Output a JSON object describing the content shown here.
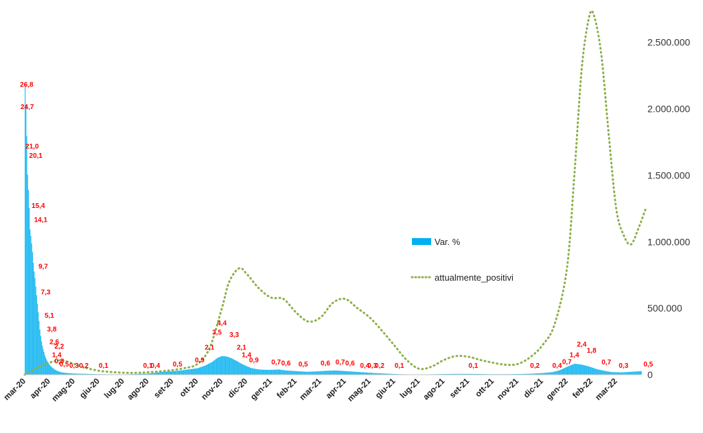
{
  "colors": {
    "bars": "#00b0f0",
    "line": "#8db04a",
    "labels": "#ff0000"
  },
  "chart_data": {
    "type": "bar",
    "categories": [
      "mar-20",
      "apr-20",
      "mag-20",
      "giu-20",
      "lug-20",
      "ago-20",
      "set-20",
      "ott-20",
      "nov-20",
      "dic-20",
      "gen-21",
      "feb-21",
      "mar-21",
      "apr-21",
      "mag-21",
      "giu-21",
      "lug-21",
      "ago-21",
      "set-21",
      "ott-21",
      "nov-21",
      "dic-21",
      "gen-22",
      "feb-22",
      "mar-22"
    ],
    "xlabel": "",
    "ylabel": "",
    "grid": false,
    "legend_placement": "center-right",
    "secondary_axis": {
      "ylim": [
        0,
        2700000
      ],
      "ticks": [
        "0",
        "500.000",
        "1.000.000",
        "1.500.000",
        "2.000.000",
        "2.500.000"
      ],
      "tick_values": [
        0,
        500000,
        1000000,
        1500000,
        2000000,
        2500000
      ]
    },
    "series": [
      {
        "name": "Var. %",
        "type": "bar",
        "axis": "primary",
        "points": [
          [
            0,
            90
          ],
          [
            0.05,
            80
          ],
          [
            0.1,
            62
          ],
          [
            0.15,
            55
          ],
          [
            0.2,
            45
          ],
          [
            0.25,
            42
          ],
          [
            0.3,
            38
          ],
          [
            0.35,
            33
          ],
          [
            0.4,
            30
          ],
          [
            0.45,
            26
          ],
          [
            0.5,
            22
          ],
          [
            0.55,
            18
          ],
          [
            0.6,
            14
          ],
          [
            0.65,
            11
          ],
          [
            0.7,
            9
          ],
          [
            0.75,
            7.5
          ],
          [
            0.8,
            6
          ],
          [
            0.85,
            5
          ],
          [
            0.9,
            4.2
          ],
          [
            0.95,
            3.6
          ],
          [
            1.0,
            3.0
          ],
          [
            1.1,
            2.2
          ],
          [
            1.2,
            1.6
          ],
          [
            1.3,
            1.2
          ],
          [
            1.4,
            0.9
          ],
          [
            1.5,
            0.7
          ],
          [
            1.7,
            0.5
          ],
          [
            2.0,
            0.35
          ],
          [
            2.5,
            0.25
          ],
          [
            3.0,
            0.15
          ],
          [
            3.5,
            0.12
          ],
          [
            4.0,
            0.1
          ],
          [
            4.5,
            0.2
          ],
          [
            5.0,
            0.35
          ],
          [
            5.3,
            0.6
          ],
          [
            5.6,
            0.9
          ],
          [
            6.0,
            1.1
          ],
          [
            6.3,
            1.3
          ],
          [
            6.6,
            1.6
          ],
          [
            7.0,
            2.0
          ],
          [
            7.3,
            2.8
          ],
          [
            7.6,
            4.0
          ],
          [
            7.8,
            5.2
          ],
          [
            8.0,
            5.8
          ],
          [
            8.2,
            5.6
          ],
          [
            8.4,
            5.0
          ],
          [
            8.6,
            4.2
          ],
          [
            8.8,
            3.3
          ],
          [
            9.0,
            2.6
          ],
          [
            9.2,
            2.0
          ],
          [
            9.5,
            1.6
          ],
          [
            9.8,
            1.5
          ],
          [
            10.0,
            1.5
          ],
          [
            10.3,
            1.6
          ],
          [
            10.6,
            1.3
          ],
          [
            11.0,
            1.1
          ],
          [
            11.4,
            0.9
          ],
          [
            11.8,
            1.0
          ],
          [
            12.2,
            1.2
          ],
          [
            12.6,
            1.3
          ],
          [
            13.0,
            1.1
          ],
          [
            13.4,
            0.9
          ],
          [
            13.8,
            0.7
          ],
          [
            14.2,
            0.5
          ],
          [
            14.6,
            0.35
          ],
          [
            15.0,
            0.2
          ],
          [
            15.5,
            0.1
          ],
          [
            16.0,
            0.08
          ],
          [
            16.5,
            0.12
          ],
          [
            17.0,
            0.2
          ],
          [
            17.5,
            0.25
          ],
          [
            18.0,
            0.25
          ],
          [
            18.5,
            0.2
          ],
          [
            19.0,
            0.15
          ],
          [
            19.5,
            0.15
          ],
          [
            20.0,
            0.2
          ],
          [
            20.5,
            0.3
          ],
          [
            21.0,
            0.5
          ],
          [
            21.4,
            0.8
          ],
          [
            21.7,
            1.4
          ],
          [
            22.0,
            2.5
          ],
          [
            22.3,
            3.4
          ],
          [
            22.6,
            3.1
          ],
          [
            22.9,
            2.5
          ],
          [
            23.2,
            1.7
          ],
          [
            23.5,
            1.2
          ],
          [
            23.8,
            0.8
          ],
          [
            24.2,
            0.7
          ],
          [
            24.6,
            0.9
          ],
          [
            25.0,
            1.1
          ]
        ]
      },
      {
        "name": "attualmente_positivi",
        "type": "line",
        "axis": "secondary",
        "points": [
          [
            0,
            0
          ],
          [
            0.5,
            50000
          ],
          [
            1.0,
            90000
          ],
          [
            1.5,
            108000
          ],
          [
            2.0,
            80000
          ],
          [
            2.5,
            50000
          ],
          [
            3.0,
            30000
          ],
          [
            3.5,
            20000
          ],
          [
            4.0,
            15000
          ],
          [
            4.5,
            14000
          ],
          [
            5.0,
            18000
          ],
          [
            5.5,
            25000
          ],
          [
            6.0,
            35000
          ],
          [
            6.5,
            50000
          ],
          [
            7.0,
            80000
          ],
          [
            7.5,
            200000
          ],
          [
            8.0,
            500000
          ],
          [
            8.3,
            700000
          ],
          [
            8.7,
            800000
          ],
          [
            9.0,
            760000
          ],
          [
            9.5,
            650000
          ],
          [
            10.0,
            580000
          ],
          [
            10.5,
            570000
          ],
          [
            11.0,
            470000
          ],
          [
            11.5,
            400000
          ],
          [
            12.0,
            430000
          ],
          [
            12.5,
            540000
          ],
          [
            13.0,
            570000
          ],
          [
            13.5,
            500000
          ],
          [
            14.0,
            430000
          ],
          [
            14.5,
            330000
          ],
          [
            15.0,
            220000
          ],
          [
            15.5,
            110000
          ],
          [
            16.0,
            45000
          ],
          [
            16.5,
            60000
          ],
          [
            17.0,
            110000
          ],
          [
            17.5,
            140000
          ],
          [
            18.0,
            135000
          ],
          [
            18.5,
            110000
          ],
          [
            19.0,
            90000
          ],
          [
            19.5,
            75000
          ],
          [
            20.0,
            80000
          ],
          [
            20.5,
            130000
          ],
          [
            21.0,
            220000
          ],
          [
            21.5,
            380000
          ],
          [
            22.0,
            800000
          ],
          [
            22.3,
            1500000
          ],
          [
            22.6,
            2300000
          ],
          [
            22.9,
            2690000
          ],
          [
            23.1,
            2700000
          ],
          [
            23.4,
            2400000
          ],
          [
            23.7,
            1800000
          ],
          [
            24.0,
            1250000
          ],
          [
            24.3,
            1050000
          ],
          [
            24.6,
            980000
          ],
          [
            24.9,
            1100000
          ],
          [
            25.2,
            1250000
          ]
        ]
      }
    ],
    "data_labels": [
      {
        "x": 0.08,
        "value": "26,8"
      },
      {
        "x": 0.1,
        "value": "24,7"
      },
      {
        "x": 0.3,
        "value": "21,0"
      },
      {
        "x": 0.45,
        "value": "20,1"
      },
      {
        "x": 0.55,
        "value": "15,4"
      },
      {
        "x": 0.65,
        "value": "14,1"
      },
      {
        "x": 0.75,
        "value": "9,7"
      },
      {
        "x": 0.85,
        "value": "7,3"
      },
      {
        "x": 1.0,
        "value": "5,1"
      },
      {
        "x": 1.1,
        "value": "3,8"
      },
      {
        "x": 1.2,
        "value": "2,6"
      },
      {
        "x": 1.4,
        "value": "2,2"
      },
      {
        "x": 1.3,
        "value": "1,4"
      },
      {
        "x": 1.4,
        "value": "0,8"
      },
      {
        "x": 1.6,
        "value": "0,5"
      },
      {
        "x": 2.0,
        "value": "0,3"
      },
      {
        "x": 2.4,
        "value": "0,2"
      },
      {
        "x": 3.2,
        "value": "0,1"
      },
      {
        "x": 5.0,
        "value": "0,1"
      },
      {
        "x": 5.3,
        "value": "0,4"
      },
      {
        "x": 6.2,
        "value": "0,5"
      },
      {
        "x": 7.1,
        "value": "0,9"
      },
      {
        "x": 7.5,
        "value": "2,1"
      },
      {
        "x": 7.8,
        "value": "3,5"
      },
      {
        "x": 8.0,
        "value": "4,4"
      },
      {
        "x": 8.5,
        "value": "3,3"
      },
      {
        "x": 8.8,
        "value": "2,1"
      },
      {
        "x": 9.0,
        "value": "1,4"
      },
      {
        "x": 9.3,
        "value": "0,9"
      },
      {
        "x": 10.2,
        "value": "0,7"
      },
      {
        "x": 10.6,
        "value": "0,6"
      },
      {
        "x": 11.3,
        "value": "0,5"
      },
      {
        "x": 12.2,
        "value": "0,6"
      },
      {
        "x": 12.8,
        "value": "0,7"
      },
      {
        "x": 13.2,
        "value": "0,6"
      },
      {
        "x": 13.8,
        "value": "0,4"
      },
      {
        "x": 14.1,
        "value": "0,3"
      },
      {
        "x": 14.4,
        "value": "0,2"
      },
      {
        "x": 15.2,
        "value": "0,1"
      },
      {
        "x": 18.2,
        "value": "0,1"
      },
      {
        "x": 20.7,
        "value": "0,2"
      },
      {
        "x": 21.6,
        "value": "0,4"
      },
      {
        "x": 22.0,
        "value": "0,7"
      },
      {
        "x": 22.3,
        "value": "1,4"
      },
      {
        "x": 22.6,
        "value": "2,4"
      },
      {
        "x": 23.0,
        "value": "1,8"
      },
      {
        "x": 23.6,
        "value": "0,7"
      },
      {
        "x": 24.3,
        "value": "0,3"
      },
      {
        "x": 25.3,
        "value": "0,5"
      }
    ]
  }
}
